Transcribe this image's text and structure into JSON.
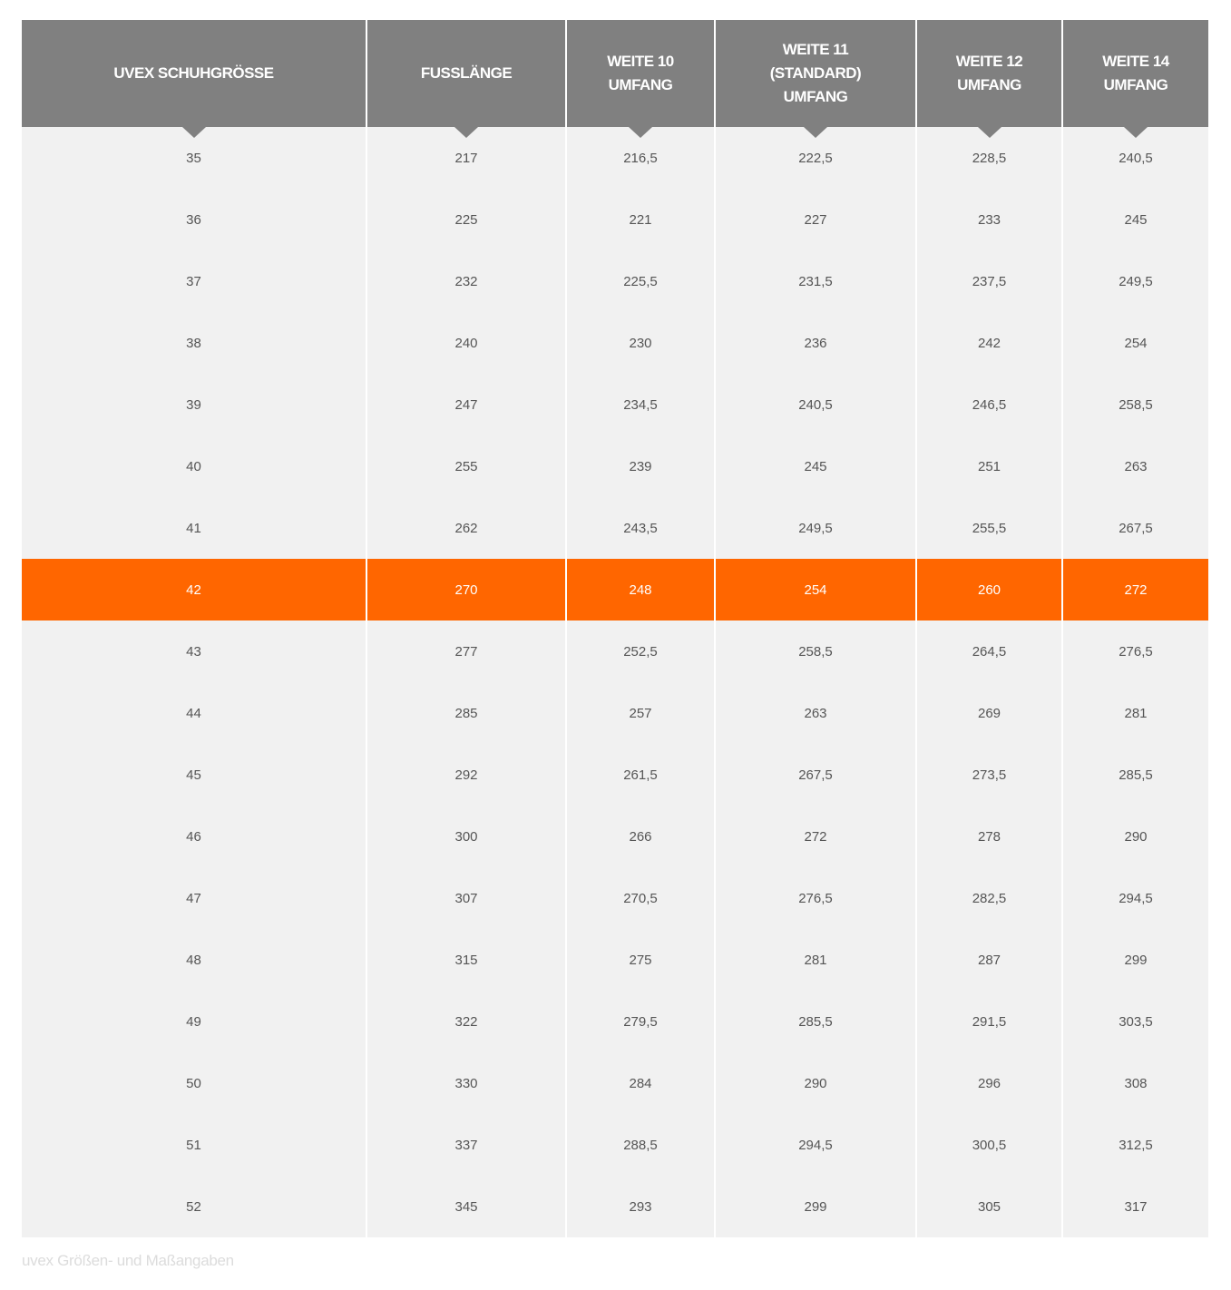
{
  "table": {
    "headers": [
      "UVEX SCHUHGRÖSSE",
      "FUSSLÄNGE",
      "WEITE 10\nUMFANG",
      "WEITE 11\n(STANDARD)\nUMFANG",
      "WEITE 12\nUMFANG",
      "WEITE 14\nUMFANG"
    ],
    "highlight_row": "42",
    "highlight_color": "#ff6600",
    "header_color": "#808080",
    "rows": [
      [
        "35",
        "217",
        "216,5",
        "222,5",
        "228,5",
        "240,5"
      ],
      [
        "36",
        "225",
        "221",
        "227",
        "233",
        "245"
      ],
      [
        "37",
        "232",
        "225,5",
        "231,5",
        "237,5",
        "249,5"
      ],
      [
        "38",
        "240",
        "230",
        "236",
        "242",
        "254"
      ],
      [
        "39",
        "247",
        "234,5",
        "240,5",
        "246,5",
        "258,5"
      ],
      [
        "40",
        "255",
        "239",
        "245",
        "251",
        "263"
      ],
      [
        "41",
        "262",
        "243,5",
        "249,5",
        "255,5",
        "267,5"
      ],
      [
        "42",
        "270",
        "248",
        "254",
        "260",
        "272"
      ],
      [
        "43",
        "277",
        "252,5",
        "258,5",
        "264,5",
        "276,5"
      ],
      [
        "44",
        "285",
        "257",
        "263",
        "269",
        "281"
      ],
      [
        "45",
        "292",
        "261,5",
        "267,5",
        "273,5",
        "285,5"
      ],
      [
        "46",
        "300",
        "266",
        "272",
        "278",
        "290"
      ],
      [
        "47",
        "307",
        "270,5",
        "276,5",
        "282,5",
        "294,5"
      ],
      [
        "48",
        "315",
        "275",
        "281",
        "287",
        "299"
      ],
      [
        "49",
        "322",
        "279,5",
        "285,5",
        "291,5",
        "303,5"
      ],
      [
        "50",
        "330",
        "284",
        "290",
        "296",
        "308"
      ],
      [
        "51",
        "337",
        "288,5",
        "294,5",
        "300,5",
        "312,5"
      ],
      [
        "52",
        "345",
        "293",
        "299",
        "305",
        "317"
      ]
    ]
  },
  "caption": "uvex Größen- und Maßangaben"
}
